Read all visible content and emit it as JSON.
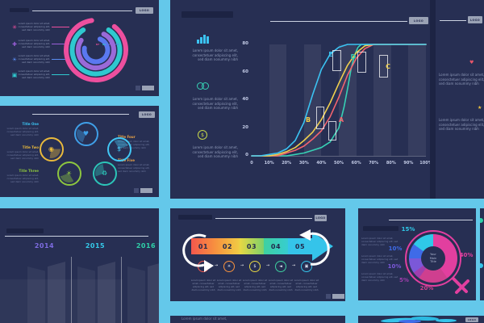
{
  "palette": {
    "canvas": "#64c8ea",
    "slide": "#272f53",
    "seam": "#1d2444",
    "muted": "#8e99b8",
    "faint": "#6f7aa0",
    "white_line": "#e8ecf5",
    "logo_bg": "#9aa2b5"
  },
  "logo": "LOGO",
  "lorem": {
    "l1": "Lorem ipsum dolor sit amet,",
    "l2": "consectetuer adipiscing elit,",
    "l3": "sed diam nonummy nibh"
  },
  "slides": {
    "rings": {
      "items": [
        {
          "icon": "brain-icon",
          "glyph": "✳",
          "color": "#ed4f9e"
        },
        {
          "icon": "puzzle-icon",
          "glyph": "✚",
          "color": "#9a5fd8"
        },
        {
          "icon": "bulb-icon",
          "glyph": "☀",
          "color": "#5a8cf0"
        },
        {
          "icon": "briefcase-icon",
          "glyph": "▣",
          "color": "#2fc8cf"
        }
      ]
    },
    "circles": {
      "titles_left": [
        {
          "label": "Title One",
          "color": "#3bc3f2"
        },
        {
          "label": "Title Two",
          "color": "#e8b93c"
        },
        {
          "label": "Title Three",
          "color": "#8dc63f"
        }
      ],
      "titles_right": [
        {
          "label": "Title Four",
          "color": "#eca446"
        },
        {
          "label": "Title Five",
          "color": "#eca446"
        }
      ],
      "bubbles": [
        {
          "icon": "apple-icon",
          "glyph": "♥",
          "color": "#3f9fe8"
        },
        {
          "icon": "eye-icon",
          "glyph": "◉",
          "color": "#e8b93c"
        },
        {
          "icon": "dollar-icon",
          "glyph": "$",
          "color": "#42c8f5"
        },
        {
          "icon": "idea-icon",
          "glyph": "☀",
          "color": "#8dc63f"
        },
        {
          "icon": "recycle-icon",
          "glyph": "♻",
          "color": "#2cc5b8"
        }
      ]
    },
    "years": {
      "labels": [
        {
          "text": "2014",
          "color": "#7d6be0"
        },
        {
          "text": "2015",
          "color": "#35c8e8"
        },
        {
          "text": "2016",
          "color": "#2fd0a8"
        }
      ]
    },
    "curves": {
      "items": [
        {
          "icon": "bar-chart-icon",
          "color": "#3bc3f2"
        },
        {
          "icon": "venn-icon",
          "color": "#37d1b5"
        },
        {
          "icon": "dollar-circle-icon",
          "glyph": "$",
          "color": "#c8d84a"
        }
      ]
    },
    "arrow": {
      "steps": [
        {
          "num": "01",
          "c1": "#f4574d",
          "c2": "#f7923f",
          "icon": "thumbs-up-icon",
          "glyph": "✓"
        },
        {
          "num": "02",
          "c1": "#f7923f",
          "c2": "#f0cc44",
          "icon": "bulb-icon",
          "glyph": "☀"
        },
        {
          "num": "03",
          "c1": "#e8d843",
          "c2": "#7fd06a",
          "icon": "dollar-icon",
          "glyph": "$"
        },
        {
          "num": "04",
          "c1": "#3ed0a0",
          "c2": "#37cdd0",
          "icon": "speaker-icon",
          "glyph": "◄"
        },
        {
          "num": "05",
          "c1": "#35c4ea",
          "c2": "#35c4ea",
          "icon": "briefcase-icon",
          "glyph": "▣"
        }
      ]
    },
    "donut": {
      "center_title": "Your\nMain\nTitle"
    },
    "top_right": {
      "items": [
        {
          "icon": "heart-icon",
          "glyph": "♥",
          "color": "#e8566a"
        },
        {
          "icon": "star-icon",
          "glyph": "★",
          "color": "#f0c43e"
        }
      ]
    }
  },
  "chart_data": [
    {
      "id": "s-curves",
      "type": "line",
      "title": "",
      "xlabel": "",
      "ylabel": "",
      "xlim": [
        0,
        100
      ],
      "ylim": [
        0,
        80
      ],
      "x_ticks": [
        "0",
        "10%",
        "20%",
        "30%",
        "40%",
        "50%",
        "60%",
        "70%",
        "80%",
        "90%",
        "100%"
      ],
      "y_ticks": [
        80,
        60,
        40,
        20,
        0
      ],
      "grid": "alternating vertical bands",
      "series": [
        {
          "name": "curve-cyan",
          "color": "#3bc3f2",
          "points": [
            [
              0,
              0
            ],
            [
              5,
              0
            ],
            [
              10,
              1
            ],
            [
              15,
              2
            ],
            [
              20,
              5
            ],
            [
              25,
              11
            ],
            [
              30,
              24
            ],
            [
              35,
              44
            ],
            [
              40,
              62
            ],
            [
              45,
              73
            ],
            [
              50,
              78
            ],
            [
              55,
              80
            ],
            [
              100,
              80
            ]
          ]
        },
        {
          "name": "curve-yellow",
          "color": "#f0cf4e",
          "points": [
            [
              0,
              0
            ],
            [
              10,
              0
            ],
            [
              15,
              1
            ],
            [
              20,
              3
            ],
            [
              25,
              6
            ],
            [
              30,
              11
            ],
            [
              35,
              17
            ],
            [
              40,
              26
            ],
            [
              45,
              38
            ],
            [
              50,
              52
            ],
            [
              55,
              65
            ],
            [
              60,
              74
            ],
            [
              65,
              79
            ],
            [
              70,
              80
            ],
            [
              100,
              80
            ]
          ]
        },
        {
          "name": "curve-coral",
          "color": "#f2646e",
          "points": [
            [
              0,
              0
            ],
            [
              15,
              0
            ],
            [
              20,
              2
            ],
            [
              25,
              4
            ],
            [
              30,
              7
            ],
            [
              35,
              12
            ],
            [
              40,
              18
            ],
            [
              45,
              28
            ],
            [
              50,
              42
            ],
            [
              55,
              58
            ],
            [
              60,
              70
            ],
            [
              65,
              77
            ],
            [
              70,
              80
            ],
            [
              100,
              80
            ]
          ]
        },
        {
          "name": "curve-teal",
          "color": "#37d1b5",
          "points": [
            [
              0,
              0
            ],
            [
              20,
              0
            ],
            [
              25,
              1
            ],
            [
              30,
              2
            ],
            [
              35,
              4
            ],
            [
              40,
              6
            ],
            [
              45,
              10
            ],
            [
              50,
              20
            ],
            [
              53,
              35
            ],
            [
              55,
              48
            ],
            [
              57,
              62
            ],
            [
              59,
              72
            ],
            [
              61,
              78
            ],
            [
              63,
              80
            ],
            [
              100,
              80
            ]
          ]
        }
      ],
      "annotations": [
        {
          "label": "E",
          "color": "#3bc3f2",
          "x": 49,
          "y": 72
        },
        {
          "label": "D",
          "color": "#37d1b5",
          "x": 62,
          "y": 70
        },
        {
          "label": "C",
          "color": "#f0cf4e",
          "x": 82,
          "y": 63
        },
        {
          "label": "B",
          "color": "#f0cf4e",
          "x": 36,
          "y": 25
        },
        {
          "label": "A",
          "color": "#f2646e",
          "x": 55,
          "y": 25
        }
      ]
    },
    {
      "id": "progress-rings",
      "type": "donut",
      "values": [
        87,
        82,
        77,
        72
      ],
      "labels": [
        "87",
        "82",
        "77",
        "72"
      ],
      "colors": [
        "#ed4f9e",
        "#2fc8cf",
        "#9a6ad8",
        "#5a78f0"
      ]
    },
    {
      "id": "gender-donut",
      "type": "pie",
      "title": "Your Main Title",
      "legend_position": "around",
      "slices": [
        {
          "label": "40%",
          "value": 40,
          "color": "#e23f9f"
        },
        {
          "label": "20%",
          "value": 20,
          "color": "#cf3f8f"
        },
        {
          "label": "5%",
          "value": 5,
          "color": "#a03fae"
        },
        {
          "label": "10%",
          "value": 10,
          "color": "#7b58d8"
        },
        {
          "label": "10%",
          "value": 10,
          "color": "#3f6be8"
        },
        {
          "label": "15%",
          "value": 15,
          "color": "#2fc9e8"
        }
      ]
    },
    {
      "id": "year-columns",
      "type": "bar",
      "categories": [
        "2014",
        "2015",
        "2016"
      ],
      "note": "decorative translucent columns, values not labeled"
    }
  ]
}
